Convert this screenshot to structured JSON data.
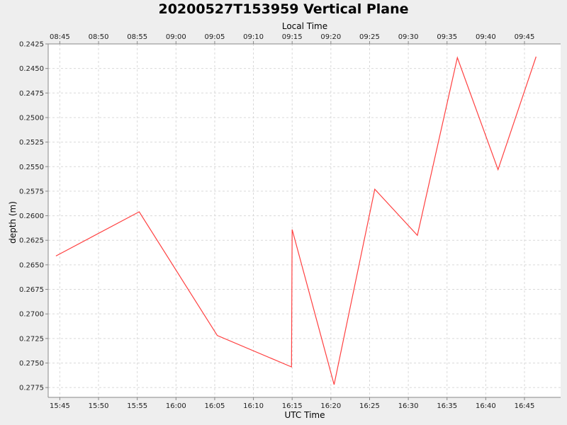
{
  "chart_data": {
    "type": "line",
    "title": "20200527T153959 Vertical Plane",
    "xlabel": "UTC Time",
    "x2label": "Local Time",
    "ylabel": "depth (m)",
    "y_inverted": true,
    "ylim": [
      0.2425,
      0.2785
    ],
    "xlim": [
      "15:43:30",
      "16:49:40"
    ],
    "x_ticks": [
      "15:45",
      "15:50",
      "15:55",
      "16:00",
      "16:05",
      "16:10",
      "16:15",
      "16:20",
      "16:25",
      "16:30",
      "16:35",
      "16:40",
      "16:45"
    ],
    "x2_ticks": [
      "08:45",
      "08:50",
      "08:55",
      "09:00",
      "09:05",
      "09:10",
      "09:15",
      "09:20",
      "09:25",
      "09:30",
      "09:35",
      "09:40",
      "09:45"
    ],
    "y_ticks": [
      "0.2425",
      "0.2450",
      "0.2475",
      "0.2500",
      "0.2525",
      "0.2550",
      "0.2575",
      "0.2600",
      "0.2625",
      "0.2650",
      "0.2675",
      "0.2700",
      "0.2725",
      "0.2750",
      "0.2775"
    ],
    "grid": true,
    "series": [
      {
        "color": "#ff4040",
        "x": [
          "15:44:30",
          "15:55:15",
          "16:05:20",
          "16:14:55",
          "16:15:00",
          "16:20:25",
          "16:25:40",
          "16:31:10",
          "16:36:20",
          "16:41:35",
          "16:46:30"
        ],
        "y": [
          0.2641,
          0.2596,
          0.2722,
          0.2754,
          0.2614,
          0.2772,
          0.2573,
          0.262,
          0.2439,
          0.2553,
          0.2438
        ]
      }
    ]
  }
}
